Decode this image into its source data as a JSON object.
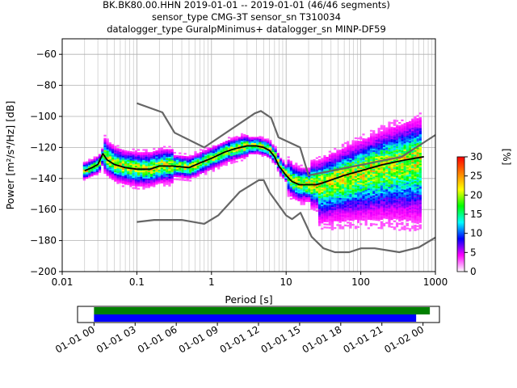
{
  "title": {
    "line1": "BK.BK80.00.HHN   2019-01-01 -- 2019-01-01  (46/46 segments)",
    "line2": "sensor_type CMG-3T sensor_sn T310034",
    "line3": "datalogger_type GuralpMinimus+ datalogger_sn MINP-DF59"
  },
  "chart_data": [
    {
      "type": "heatmap",
      "name": "probabilistic-power-spectral-density",
      "xlabel": "Period [s]",
      "ylabel": "Power [m²/s⁴/Hz] [dB]",
      "xscale": "log",
      "xlim": [
        0.01,
        1000
      ],
      "ylim": [
        -200,
        -50
      ],
      "x_ticks": [
        0.01,
        0.1,
        1,
        10,
        100,
        1000
      ],
      "x_tick_labels": [
        "0.01",
        "0.1",
        "1",
        "10",
        "100",
        "1000"
      ],
      "y_ticks": [
        -200,
        -180,
        -160,
        -140,
        -120,
        -100,
        -80,
        -60
      ],
      "y_tick_labels": [
        "−200",
        "−180",
        "−160",
        "−140",
        "−120",
        "−100",
        "−80",
        "−60"
      ],
      "grid": true,
      "noise_model_high": {
        "color": "#666666",
        "x": [
          0.1,
          0.22,
          0.32,
          0.8,
          3.8,
          4.6,
          6.3,
          7.9,
          15.4,
          20,
          354.8,
          1000
        ],
        "y": [
          -91.5,
          -97.4,
          -110.5,
          -120,
          -98,
          -96.5,
          -101,
          -113.5,
          -120,
          -138,
          -126,
          -112
        ]
      },
      "noise_model_low": {
        "color": "#666666",
        "x": [
          0.1,
          0.17,
          0.4,
          0.8,
          1.24,
          2.4,
          4.3,
          5.0,
          6.0,
          10,
          12,
          15.6,
          21.9,
          31.6,
          45,
          70,
          101,
          154,
          328,
          600,
          1000
        ],
        "y": [
          -168,
          -166.7,
          -166.7,
          -169.2,
          -163.7,
          -148.6,
          -141.1,
          -141.1,
          -149,
          -163.8,
          -166.2,
          -162.1,
          -177.5,
          -185,
          -187.5,
          -187.5,
          -185,
          -185,
          -187.5,
          -184.4,
          -178
        ]
      },
      "mean_curve": {
        "color": "#000000",
        "x": [
          0.02,
          0.025,
          0.03,
          0.035,
          0.04,
          0.05,
          0.07,
          0.1,
          0.15,
          0.2,
          0.3,
          0.5,
          0.7,
          1,
          1.5,
          2,
          3,
          4,
          5,
          6,
          7,
          8,
          10,
          12,
          15,
          20,
          25,
          30,
          40,
          60,
          100,
          200,
          400,
          700
        ],
        "y": [
          -135,
          -133,
          -131,
          -124,
          -128,
          -131,
          -133,
          -134,
          -134,
          -132,
          -132,
          -133,
          -130,
          -127,
          -123,
          -121,
          -119,
          -119,
          -120,
          -122,
          -126,
          -132,
          -138,
          -142,
          -144,
          -144,
          -144,
          -143,
          -141,
          -138,
          -135,
          -131,
          -128,
          -126
        ]
      },
      "colorbar": {
        "label": "[%]",
        "range": [
          0,
          30
        ],
        "ticks": [
          0,
          5,
          10,
          15,
          20,
          25,
          30
        ],
        "colormap": "pqlx",
        "stops": [
          "#ffffff",
          "#ff00ff",
          "#0000ff",
          "#00ffff",
          "#00ff00",
          "#ffff00",
          "#ff8000",
          "#ff0000"
        ]
      }
    },
    {
      "type": "timeline",
      "name": "data-coverage",
      "x_tick_labels": [
        "01-01 00",
        "01-01 03",
        "01-01 06",
        "01-01 09",
        "01-01 12",
        "01-01 15",
        "01-01 18",
        "01-01 21",
        "01-02 00"
      ],
      "x_ticks_hours": [
        0,
        3,
        6,
        9,
        12,
        15,
        18,
        21,
        24
      ],
      "xlim_hours": [
        -1.2,
        25.2
      ],
      "bars": [
        {
          "label": "",
          "color": "#008000",
          "start_hour": 0,
          "end_hour": 24.5
        },
        {
          "label": "",
          "color": "#0000ff",
          "start_hour": 0,
          "end_hour": 23.5
        }
      ]
    }
  ]
}
